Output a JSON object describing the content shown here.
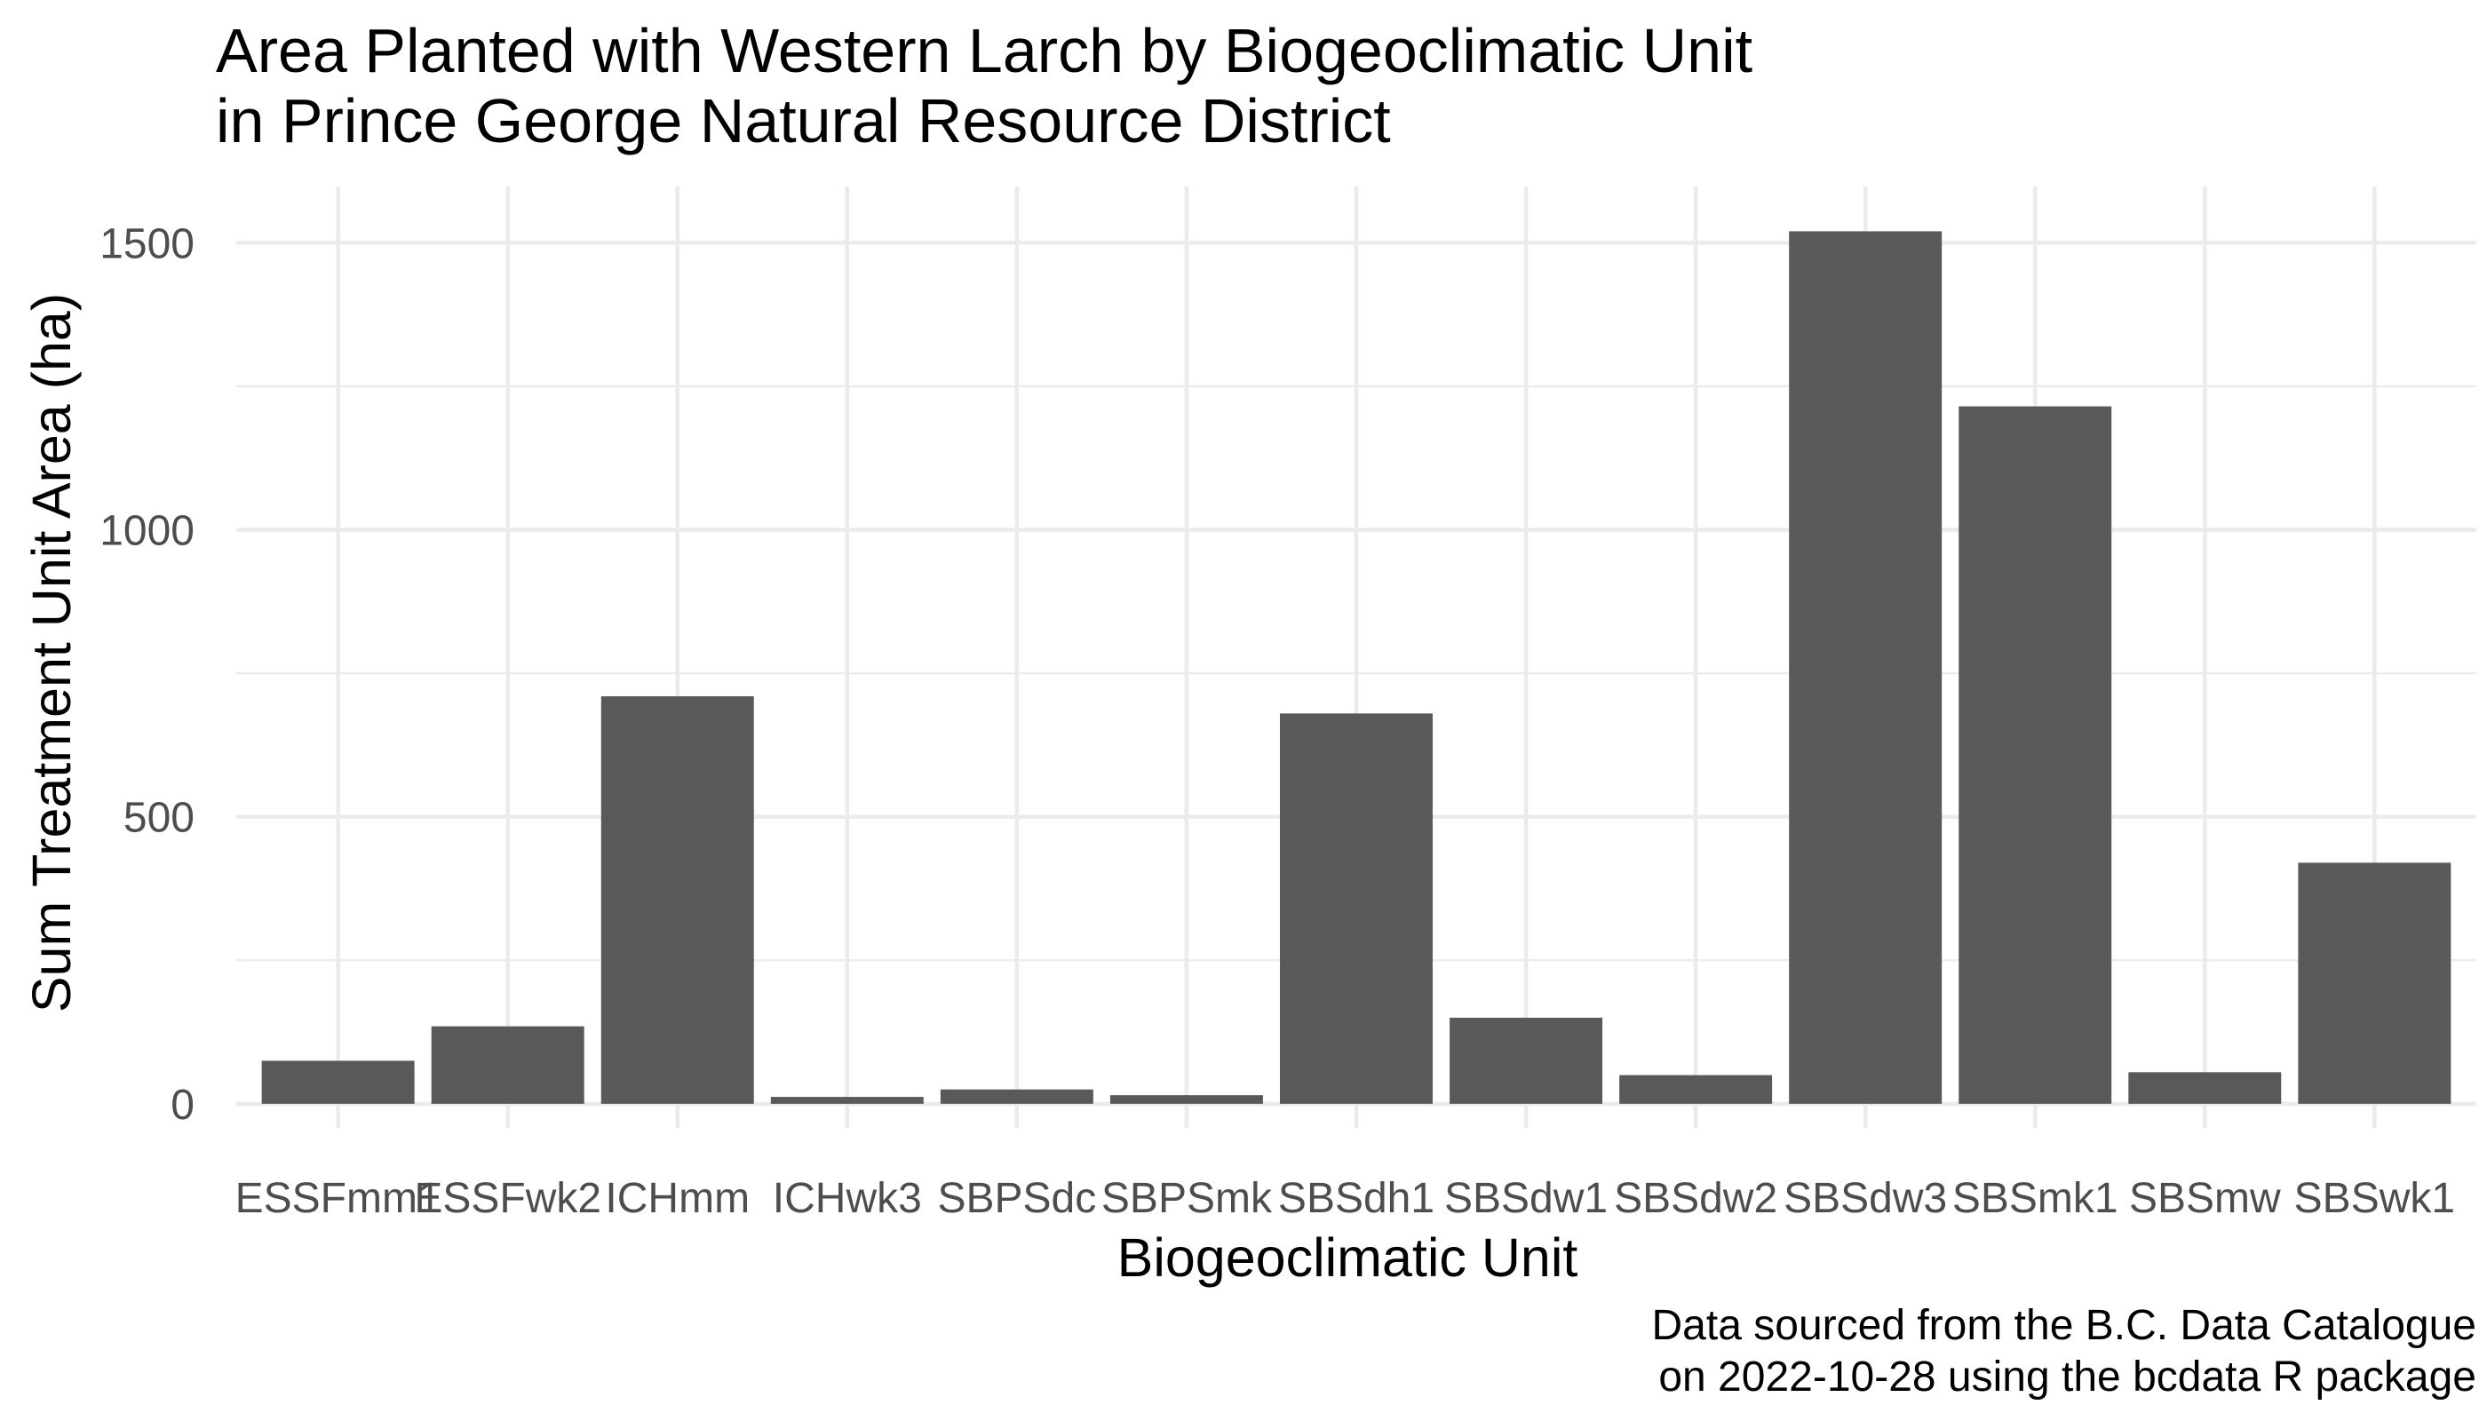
{
  "chart_data": {
    "type": "bar",
    "title": [
      "Area Planted with Western Larch by Biogeoclimatic Unit",
      "in Prince George Natural Resource District"
    ],
    "xlabel": "Biogeoclimatic Unit",
    "ylabel": "Sum Treatment Unit Area (ha)",
    "caption": [
      "Data sourced from the B.C. Data Catalogue",
      "on 2022-10-28 using the bcdata R package"
    ],
    "categories": [
      "ESSFmm1",
      "ESSFwk2",
      "ICHmm",
      "ICHwk3",
      "SBPSdc",
      "SBPSmk",
      "SBSdh1",
      "SBSdw1",
      "SBSdw2",
      "SBSdw3",
      "SBSmk1",
      "SBSmw",
      "SBSwk1"
    ],
    "values": [
      75,
      135,
      710,
      12,
      25,
      15,
      680,
      150,
      50,
      1520,
      1215,
      55,
      420
    ],
    "yticks": [
      0,
      500,
      1000,
      1500
    ],
    "ylim": [
      -42,
      1598
    ],
    "grid": true,
    "bar_color": "#595959",
    "grid_color": "#ebebeb",
    "background": "#ffffff"
  }
}
